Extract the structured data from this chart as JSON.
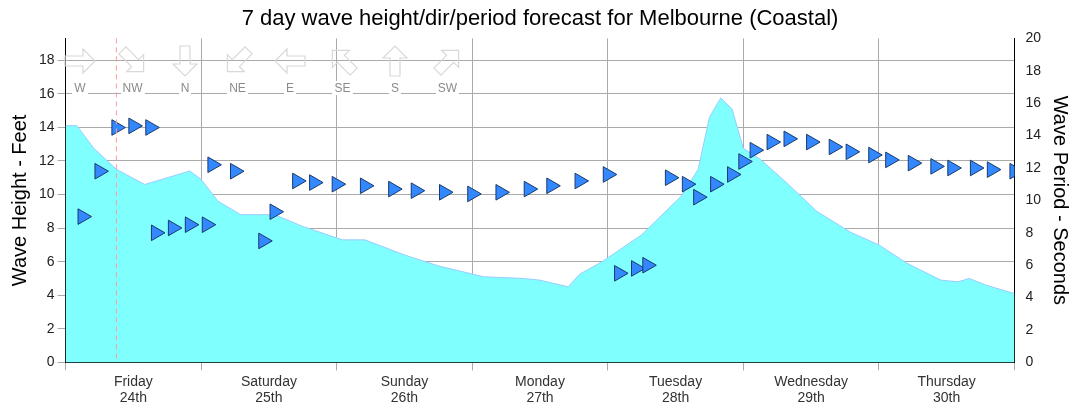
{
  "chart_data": {
    "type": "area",
    "title": "7 day wave height/dir/period forecast for Melbourne (Coastal)",
    "ylabel": "Wave Height - Feet",
    "y2label": "Wave Period - Seconds",
    "annotations": [
      "W",
      "NW",
      "N",
      "NE",
      "E",
      "SE",
      "S",
      "SW"
    ],
    "xlim": [
      "--03-24",
      "--03-31"
    ],
    "xticks": [
      {
        "value": "--03-24",
        "label": null
      },
      {
        "value": "--03-24T12:00",
        "label": "Friday\n24th"
      },
      {
        "value": "--03-25",
        "label": null
      },
      {
        "value": "--03-25T12:00",
        "label": "Saturday\n25th"
      },
      {
        "value": "--03-26",
        "label": null
      },
      {
        "value": "--03-26T12:00",
        "label": "Sunday\n26th"
      },
      {
        "value": "--03-27",
        "label": null
      },
      {
        "value": "--03-27T12:00",
        "label": "Monday\n27th"
      },
      {
        "value": "--03-28",
        "label": null
      },
      {
        "value": "--03-28T12:00",
        "label": "Tuesday\n28th"
      },
      {
        "value": "--03-29",
        "label": null
      },
      {
        "value": "--03-29T12:00",
        "label": "Wednesday\n29th"
      },
      {
        "value": "--03-30",
        "label": null
      },
      {
        "value": "--03-30T12:00",
        "label": "Thursday\n30th"
      },
      {
        "value": "--03-31",
        "label": null
      }
    ],
    "ylim": [
      0,
      19.3
    ],
    "yticks": [
      0,
      2,
      4,
      6,
      8,
      10,
      12,
      14,
      16,
      18
    ],
    "y2lim": [
      0,
      20
    ],
    "y2ticks": [
      0,
      2,
      4,
      6,
      8,
      10,
      12,
      14,
      16,
      18,
      20
    ],
    "grid": true,
    "legend": false,
    "ref_lines": [
      {
        "axis": "x",
        "value": "--03-24T09:00",
        "color": "#ff9999",
        "line_style": "dashed"
      }
    ],
    "series": [
      {
        "color": "#80ffff",
        "x": [
          "--03-24T00:00",
          "--03-24T02:00",
          "--03-24T05:00",
          "--03-24T09:00",
          "--03-24T14:00",
          "--03-24T17:00",
          "--03-24T22:00",
          "--03-25T00:00",
          "--03-25T03:00",
          "--03-25T07:00",
          "--03-25T13:00",
          "--03-25T18:00",
          "--03-26T01:00",
          "--03-26T05:00",
          "--03-26T12:00",
          "--03-26T18:00",
          "--03-27T02:00",
          "--03-27T09:00",
          "--03-27T12:00",
          "--03-27T17:00",
          "--03-27T19:00",
          "--03-27T23:00",
          "--03-28T06:00",
          "--03-28T13:00",
          "--03-28T16:00",
          "--03-28T18:00",
          "--03-28T20:00",
          "--03-28T22:00",
          "--03-29T00:00",
          "--03-29T03:00",
          "--03-29T08:00",
          "--03-29T13:00",
          "--03-29T19:00",
          "--03-30T00:00",
          "--03-30T05:00",
          "--03-30T11:00",
          "--03-30T14:00",
          "--03-30T16:00",
          "--03-30T19:00",
          "--03-31T00:00"
        ],
        "values": [
          14.1,
          14.1,
          12.75,
          11.5,
          10.6,
          10.9,
          11.4,
          10.9,
          9.6,
          8.8,
          8.8,
          8.1,
          7.3,
          7.3,
          6.4,
          5.75,
          5.1,
          5.0,
          4.9,
          4.5,
          5.25,
          6.0,
          7.6,
          9.9,
          11.5,
          14.6,
          15.75,
          15.1,
          12.75,
          12.1,
          10.6,
          9.0,
          7.75,
          7.0,
          5.9,
          4.9,
          4.8,
          5.0,
          4.6,
          4.1
        ]
      },
      {
        "type": "scatter",
        "axis": "y2",
        "marker": "triangle",
        "color": "#3388ff",
        "x": [
          "--03-24T03:00",
          "--03-24T06:00",
          "--03-24T09:00",
          "--03-24T12:00",
          "--03-24T15:00",
          "--03-24T16:00",
          "--03-24T19:00",
          "--03-24T22:00",
          "--03-25T01:00",
          "--03-25T02:00",
          "--03-25T06:00",
          "--03-25T11:00",
          "--03-25T13:00",
          "--03-25T17:00",
          "--03-25T20:00",
          "--03-26T00:00",
          "--03-26T05:00",
          "--03-26T10:00",
          "--03-26T14:00",
          "--03-26T19:00",
          "--03-27T00:00",
          "--03-27T05:00",
          "--03-27T10:00",
          "--03-27T14:00",
          "--03-27T19:00",
          "--03-28T00:00",
          "--03-28T02:00",
          "--03-28T05:00",
          "--03-28T07:00",
          "--03-28T11:00",
          "--03-28T14:00",
          "--03-28T16:00",
          "--03-28T19:00",
          "--03-28T22:00",
          "--03-29T00:00",
          "--03-29T02:00",
          "--03-29T05:00",
          "--03-29T08:00",
          "--03-29T12:00",
          "--03-29T16:00",
          "--03-29T19:00",
          "--03-29T23:00",
          "--03-30T02:00",
          "--03-30T06:00",
          "--03-30T10:00",
          "--03-30T13:00",
          "--03-30T17:00",
          "--03-30T20:00",
          "--03-31T00:00"
        ],
        "values": [
          9.0,
          11.8,
          14.5,
          14.6,
          14.5,
          8.0,
          8.3,
          8.5,
          8.5,
          12.2,
          11.8,
          7.5,
          9.3,
          11.2,
          11.1,
          11.0,
          10.9,
          10.7,
          10.6,
          10.5,
          10.4,
          10.5,
          10.7,
          10.9,
          11.2,
          11.6,
          5.5,
          5.8,
          6.0,
          11.4,
          11.0,
          10.2,
          11.0,
          11.6,
          12.4,
          13.1,
          13.6,
          13.8,
          13.6,
          13.3,
          13.0,
          12.8,
          12.5,
          12.3,
          12.1,
          12.0,
          12.0,
          11.9,
          11.8
        ]
      }
    ]
  }
}
